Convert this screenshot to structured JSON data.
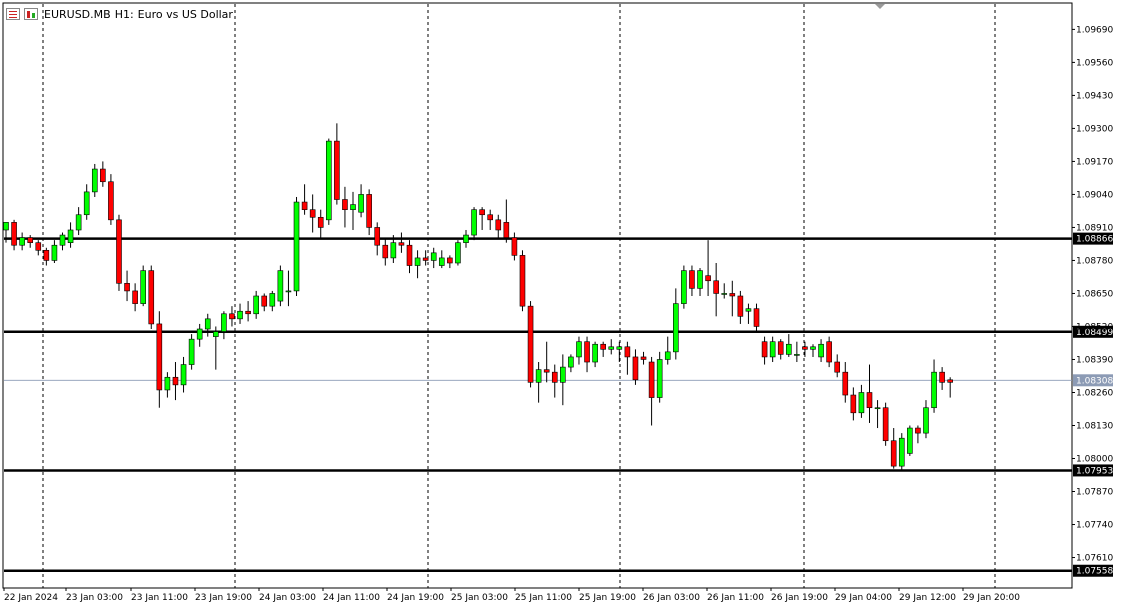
{
  "header": {
    "symbol": "EURUSD.MB",
    "timeframe": "H1:",
    "description": "Euro vs US Dollar",
    "icons": [
      "chart-window-icon",
      "bar-chart-icon"
    ]
  },
  "colors": {
    "background": "#ffffff",
    "bull": "#00ff00",
    "bear": "#ff0000",
    "wick": "#000000",
    "current_price_line": "#8c9bb5",
    "level_line": "#000000"
  },
  "chart_data": {
    "type": "candlestick",
    "symbol": "EURUSD.MB",
    "timeframe": "H1",
    "y_range": [
      1.0749,
      1.0979
    ],
    "y_ticks": [
      "1.09690",
      "1.09560",
      "1.09430",
      "1.09300",
      "1.09170",
      "1.09040",
      "1.08910",
      "1.08780",
      "1.08650",
      "1.08520",
      "1.08390",
      "1.08260",
      "1.08130",
      "1.08000",
      "1.07870",
      "1.07740",
      "1.07610"
    ],
    "x_labels": [
      "22 Jan 2024",
      "23 Jan 03:00",
      "23 Jan 11:00",
      "23 Jan 19:00",
      "24 Jan 03:00",
      "24 Jan 11:00",
      "24 Jan 19:00",
      "25 Jan 03:00",
      "25 Jan 11:00",
      "25 Jan 19:00",
      "26 Jan 03:00",
      "26 Jan 11:00",
      "26 Jan 19:00",
      "29 Jan 04:00",
      "29 Jan 12:00",
      "29 Jan 20:00"
    ],
    "horizontal_levels": [
      "1.08866",
      "1.08499",
      "1.07953",
      "1.07558"
    ],
    "current_price": "1.08308",
    "session_separators": 6,
    "candles": [
      {
        "o": 1.089,
        "h": 1.0893,
        "l": 1.0885,
        "c": 1.0893
      },
      {
        "o": 1.0893,
        "h": 1.0894,
        "l": 1.0882,
        "c": 1.0884
      },
      {
        "o": 1.0884,
        "h": 1.0889,
        "l": 1.0882,
        "c": 1.0887
      },
      {
        "o": 1.0887,
        "h": 1.0888,
        "l": 1.0883,
        "c": 1.0885
      },
      {
        "o": 1.0885,
        "h": 1.0886,
        "l": 1.088,
        "c": 1.0882
      },
      {
        "o": 1.0882,
        "h": 1.0883,
        "l": 1.0876,
        "c": 1.0878
      },
      {
        "o": 1.0878,
        "h": 1.0886,
        "l": 1.0877,
        "c": 1.0884
      },
      {
        "o": 1.0884,
        "h": 1.0889,
        "l": 1.0882,
        "c": 1.0888
      },
      {
        "o": 1.0885,
        "h": 1.0893,
        "l": 1.0883,
        "c": 1.089
      },
      {
        "o": 1.089,
        "h": 1.0899,
        "l": 1.0888,
        "c": 1.0896
      },
      {
        "o": 1.0896,
        "h": 1.0908,
        "l": 1.0894,
        "c": 1.0905
      },
      {
        "o": 1.0905,
        "h": 1.0916,
        "l": 1.0903,
        "c": 1.0914
      },
      {
        "o": 1.0914,
        "h": 1.0917,
        "l": 1.0907,
        "c": 1.0909
      },
      {
        "o": 1.0909,
        "h": 1.0912,
        "l": 1.0892,
        "c": 1.0894
      },
      {
        "o": 1.0894,
        "h": 1.0896,
        "l": 1.0866,
        "c": 1.0869
      },
      {
        "o": 1.0869,
        "h": 1.0874,
        "l": 1.0862,
        "c": 1.0866
      },
      {
        "o": 1.0866,
        "h": 1.0869,
        "l": 1.0858,
        "c": 1.0861
      },
      {
        "o": 1.0861,
        "h": 1.0876,
        "l": 1.086,
        "c": 1.0874
      },
      {
        "o": 1.0874,
        "h": 1.0876,
        "l": 1.0851,
        "c": 1.0853
      },
      {
        "o": 1.0853,
        "h": 1.0858,
        "l": 1.082,
        "c": 1.0827
      },
      {
        "o": 1.0827,
        "h": 1.0834,
        "l": 1.0824,
        "c": 1.0832
      },
      {
        "o": 1.0832,
        "h": 1.0838,
        "l": 1.0823,
        "c": 1.0829
      },
      {
        "o": 1.0829,
        "h": 1.084,
        "l": 1.0826,
        "c": 1.0837
      },
      {
        "o": 1.0837,
        "h": 1.0849,
        "l": 1.0835,
        "c": 1.0847
      },
      {
        "o": 1.0847,
        "h": 1.0853,
        "l": 1.0844,
        "c": 1.0851
      },
      {
        "o": 1.0851,
        "h": 1.0857,
        "l": 1.0848,
        "c": 1.0855
      },
      {
        "o": 1.0848,
        "h": 1.0852,
        "l": 1.0835,
        "c": 1.085
      },
      {
        "o": 1.085,
        "h": 1.0858,
        "l": 1.0847,
        "c": 1.0857
      },
      {
        "o": 1.0857,
        "h": 1.086,
        "l": 1.0852,
        "c": 1.0855
      },
      {
        "o": 1.0855,
        "h": 1.0861,
        "l": 1.0853,
        "c": 1.0858
      },
      {
        "o": 1.0858,
        "h": 1.0862,
        "l": 1.0854,
        "c": 1.0857
      },
      {
        "o": 1.0857,
        "h": 1.0866,
        "l": 1.0855,
        "c": 1.0864
      },
      {
        "o": 1.0864,
        "h": 1.0865,
        "l": 1.0858,
        "c": 1.086
      },
      {
        "o": 1.086,
        "h": 1.0866,
        "l": 1.0858,
        "c": 1.0865
      },
      {
        "o": 1.0862,
        "h": 1.0876,
        "l": 1.086,
        "c": 1.0874
      },
      {
        "o": 1.0866,
        "h": 1.0874,
        "l": 1.086,
        "c": 1.0866
      },
      {
        "o": 1.0866,
        "h": 1.0903,
        "l": 1.0864,
        "c": 1.0901
      },
      {
        "o": 1.0901,
        "h": 1.0908,
        "l": 1.0896,
        "c": 1.0898
      },
      {
        "o": 1.0898,
        "h": 1.0904,
        "l": 1.0889,
        "c": 1.0895
      },
      {
        "o": 1.0895,
        "h": 1.0898,
        "l": 1.0887,
        "c": 1.0891
      },
      {
        "o": 1.0894,
        "h": 1.0926,
        "l": 1.0892,
        "c": 1.0925
      },
      {
        "o": 1.0925,
        "h": 1.0932,
        "l": 1.09,
        "c": 1.0902
      },
      {
        "o": 1.0902,
        "h": 1.0907,
        "l": 1.0891,
        "c": 1.0898
      },
      {
        "o": 1.0898,
        "h": 1.0905,
        "l": 1.089,
        "c": 1.09
      },
      {
        "o": 1.0897,
        "h": 1.0908,
        "l": 1.0895,
        "c": 1.0904
      },
      {
        "o": 1.0904,
        "h": 1.0906,
        "l": 1.0888,
        "c": 1.0891
      },
      {
        "o": 1.0891,
        "h": 1.0893,
        "l": 1.088,
        "c": 1.0884
      },
      {
        "o": 1.0884,
        "h": 1.0887,
        "l": 1.0876,
        "c": 1.0879
      },
      {
        "o": 1.0879,
        "h": 1.0888,
        "l": 1.0877,
        "c": 1.0885
      },
      {
        "o": 1.0885,
        "h": 1.0889,
        "l": 1.0881,
        "c": 1.0884
      },
      {
        "o": 1.0884,
        "h": 1.0886,
        "l": 1.0873,
        "c": 1.0876
      },
      {
        "o": 1.0876,
        "h": 1.0882,
        "l": 1.0871,
        "c": 1.0879
      },
      {
        "o": 1.0879,
        "h": 1.0882,
        "l": 1.0876,
        "c": 1.0878
      },
      {
        "o": 1.0878,
        "h": 1.0883,
        "l": 1.0875,
        "c": 1.0881
      },
      {
        "o": 1.0876,
        "h": 1.0882,
        "l": 1.0875,
        "c": 1.0879
      },
      {
        "o": 1.0879,
        "h": 1.088,
        "l": 1.0875,
        "c": 1.0877
      },
      {
        "o": 1.0877,
        "h": 1.0886,
        "l": 1.0876,
        "c": 1.0885
      },
      {
        "o": 1.0885,
        "h": 1.089,
        "l": 1.0883,
        "c": 1.0888
      },
      {
        "o": 1.0888,
        "h": 1.0899,
        "l": 1.0886,
        "c": 1.0898
      },
      {
        "o": 1.0898,
        "h": 1.0899,
        "l": 1.089,
        "c": 1.0896
      },
      {
        "o": 1.0896,
        "h": 1.0898,
        "l": 1.089,
        "c": 1.0894
      },
      {
        "o": 1.0894,
        "h": 1.0896,
        "l": 1.0887,
        "c": 1.089
      },
      {
        "o": 1.0893,
        "h": 1.0902,
        "l": 1.0885,
        "c": 1.0887
      },
      {
        "o": 1.0887,
        "h": 1.0889,
        "l": 1.0878,
        "c": 1.088
      },
      {
        "o": 1.088,
        "h": 1.0882,
        "l": 1.0858,
        "c": 1.086
      },
      {
        "o": 1.086,
        "h": 1.0862,
        "l": 1.0828,
        "c": 1.083
      },
      {
        "o": 1.083,
        "h": 1.0838,
        "l": 1.0822,
        "c": 1.0835
      },
      {
        "o": 1.0835,
        "h": 1.0846,
        "l": 1.083,
        "c": 1.0834
      },
      {
        "o": 1.0834,
        "h": 1.0837,
        "l": 1.0824,
        "c": 1.083
      },
      {
        "o": 1.083,
        "h": 1.0841,
        "l": 1.0821,
        "c": 1.0836
      },
      {
        "o": 1.0836,
        "h": 1.0841,
        "l": 1.0834,
        "c": 1.084
      },
      {
        "o": 1.084,
        "h": 1.0848,
        "l": 1.0837,
        "c": 1.0846
      },
      {
        "o": 1.0846,
        "h": 1.0848,
        "l": 1.0834,
        "c": 1.0838
      },
      {
        "o": 1.0838,
        "h": 1.0846,
        "l": 1.0836,
        "c": 1.0845
      },
      {
        "o": 1.0845,
        "h": 1.0846,
        "l": 1.084,
        "c": 1.0843
      },
      {
        "o": 1.0843,
        "h": 1.0847,
        "l": 1.0841,
        "c": 1.0844
      },
      {
        "o": 1.0843,
        "h": 1.0846,
        "l": 1.0838,
        "c": 1.0844
      },
      {
        "o": 1.0844,
        "h": 1.0846,
        "l": 1.0833,
        "c": 1.084
      },
      {
        "o": 1.084,
        "h": 1.0843,
        "l": 1.0829,
        "c": 1.0831
      },
      {
        "o": 1.084,
        "h": 1.0842,
        "l": 1.0837,
        "c": 1.0839
      },
      {
        "o": 1.0838,
        "h": 1.084,
        "l": 1.0813,
        "c": 1.0824
      },
      {
        "o": 1.0824,
        "h": 1.0842,
        "l": 1.0822,
        "c": 1.0839
      },
      {
        "o": 1.0839,
        "h": 1.0848,
        "l": 1.0837,
        "c": 1.0842
      },
      {
        "o": 1.0842,
        "h": 1.0867,
        "l": 1.0839,
        "c": 1.0861
      },
      {
        "o": 1.0861,
        "h": 1.0876,
        "l": 1.0859,
        "c": 1.0874
      },
      {
        "o": 1.0874,
        "h": 1.0876,
        "l": 1.0864,
        "c": 1.0867
      },
      {
        "o": 1.0867,
        "h": 1.0875,
        "l": 1.0864,
        "c": 1.0874
      },
      {
        "o": 1.0872,
        "h": 1.0886,
        "l": 1.0864,
        "c": 1.087
      },
      {
        "o": 1.087,
        "h": 1.0877,
        "l": 1.0856,
        "c": 1.0865
      },
      {
        "o": 1.0865,
        "h": 1.0869,
        "l": 1.0863,
        "c": 1.0865
      },
      {
        "o": 1.0865,
        "h": 1.087,
        "l": 1.0856,
        "c": 1.0864
      },
      {
        "o": 1.0864,
        "h": 1.0866,
        "l": 1.0853,
        "c": 1.0856
      },
      {
        "o": 1.0858,
        "h": 1.0861,
        "l": 1.0853,
        "c": 1.0859
      },
      {
        "o": 1.0859,
        "h": 1.0861,
        "l": 1.085,
        "c": 1.0852
      },
      {
        "o": 1.0846,
        "h": 1.0848,
        "l": 1.0837,
        "c": 1.084
      },
      {
        "o": 1.084,
        "h": 1.0848,
        "l": 1.0838,
        "c": 1.0846
      },
      {
        "o": 1.0846,
        "h": 1.0847,
        "l": 1.0839,
        "c": 1.0841
      },
      {
        "o": 1.0841,
        "h": 1.0849,
        "l": 1.084,
        "c": 1.0845
      },
      {
        "o": 1.0841,
        "h": 1.0846,
        "l": 1.0838,
        "c": 1.0841
      },
      {
        "o": 1.0844,
        "h": 1.0846,
        "l": 1.084,
        "c": 1.0843
      },
      {
        "o": 1.0843,
        "h": 1.0845,
        "l": 1.084,
        "c": 1.0844
      },
      {
        "o": 1.084,
        "h": 1.0847,
        "l": 1.0838,
        "c": 1.0845
      },
      {
        "o": 1.0846,
        "h": 1.0848,
        "l": 1.0836,
        "c": 1.0838
      },
      {
        "o": 1.0838,
        "h": 1.0841,
        "l": 1.0832,
        "c": 1.0834
      },
      {
        "o": 1.0834,
        "h": 1.0838,
        "l": 1.0822,
        "c": 1.0825
      },
      {
        "o": 1.0825,
        "h": 1.0828,
        "l": 1.0815,
        "c": 1.0818
      },
      {
        "o": 1.0818,
        "h": 1.0829,
        "l": 1.0816,
        "c": 1.0826
      },
      {
        "o": 1.0826,
        "h": 1.0837,
        "l": 1.0814,
        "c": 1.082
      },
      {
        "o": 1.082,
        "h": 1.0823,
        "l": 1.0812,
        "c": 1.082
      },
      {
        "o": 1.082,
        "h": 1.0822,
        "l": 1.0805,
        "c": 1.0807
      },
      {
        "o": 1.0807,
        "h": 1.0812,
        "l": 1.0796,
        "c": 1.0797
      },
      {
        "o": 1.0797,
        "h": 1.081,
        "l": 1.0795,
        "c": 1.0808
      },
      {
        "o": 1.0802,
        "h": 1.0813,
        "l": 1.0801,
        "c": 1.0812
      },
      {
        "o": 1.0812,
        "h": 1.0813,
        "l": 1.0806,
        "c": 1.081
      },
      {
        "o": 1.081,
        "h": 1.0823,
        "l": 1.0808,
        "c": 1.082
      },
      {
        "o": 1.082,
        "h": 1.0839,
        "l": 1.0818,
        "c": 1.0834
      },
      {
        "o": 1.0834,
        "h": 1.0836,
        "l": 1.0827,
        "c": 1.083
      },
      {
        "o": 1.0831,
        "h": 1.0832,
        "l": 1.0824,
        "c": 1.083
      }
    ]
  }
}
